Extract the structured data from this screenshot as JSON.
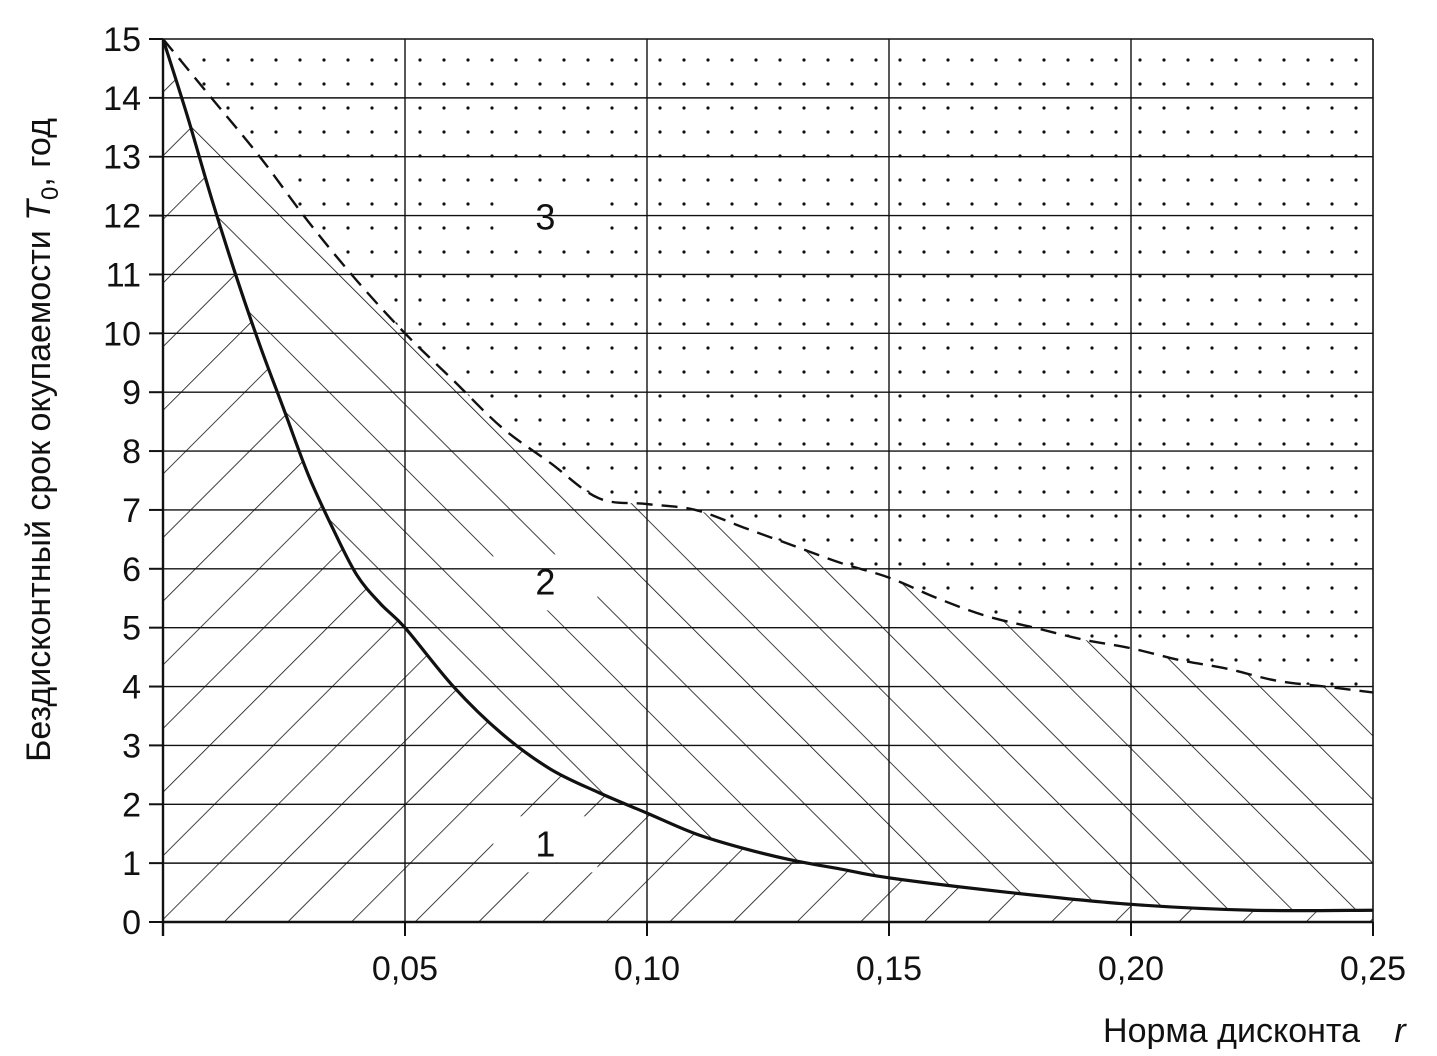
{
  "chart_data": {
    "type": "line",
    "xlabel": "Норма дисконта",
    "xlabel_var": "r",
    "ylabel": "Бездисконтный срок окупаемости",
    "ylabel_var": "T",
    "ylabel_sub": "0",
    "ylabel_unit": ", год",
    "xlim": [
      0,
      0.25
    ],
    "ylim": [
      0,
      15
    ],
    "xticks": [
      {
        "value": 0.05,
        "label": "0,05"
      },
      {
        "value": 0.1,
        "label": "0,10"
      },
      {
        "value": 0.15,
        "label": "0,15"
      },
      {
        "value": 0.2,
        "label": "0,20"
      },
      {
        "value": 0.25,
        "label": "0,25"
      }
    ],
    "yticks": [
      {
        "value": 0,
        "label": "0"
      },
      {
        "value": 1,
        "label": "1"
      },
      {
        "value": 2,
        "label": "2"
      },
      {
        "value": 3,
        "label": "3"
      },
      {
        "value": 4,
        "label": "4"
      },
      {
        "value": 5,
        "label": "5"
      },
      {
        "value": 6,
        "label": "6"
      },
      {
        "value": 7,
        "label": "7"
      },
      {
        "value": 8,
        "label": "8"
      },
      {
        "value": 9,
        "label": "9"
      },
      {
        "value": 10,
        "label": "10"
      },
      {
        "value": 11,
        "label": "11"
      },
      {
        "value": 12,
        "label": "12"
      },
      {
        "value": 13,
        "label": "13"
      },
      {
        "value": 14,
        "label": "14"
      },
      {
        "value": 15,
        "label": "15"
      }
    ],
    "grid": true,
    "series": [
      {
        "style": "solid",
        "x": [
          0,
          0.005,
          0.01,
          0.015,
          0.02,
          0.025,
          0.03,
          0.035,
          0.04,
          0.045,
          0.05,
          0.06,
          0.07,
          0.08,
          0.09,
          0.1,
          0.11,
          0.12,
          0.13,
          0.14,
          0.15,
          0.175,
          0.2,
          0.225,
          0.25
        ],
        "y": [
          15.0,
          13.7,
          12.3,
          11.0,
          9.8,
          8.7,
          7.6,
          6.7,
          5.9,
          5.4,
          5.0,
          4.0,
          3.2,
          2.6,
          2.2,
          1.85,
          1.5,
          1.25,
          1.05,
          0.9,
          0.75,
          0.5,
          0.3,
          0.2,
          0.2
        ]
      },
      {
        "style": "dashed",
        "x": [
          0,
          0.01,
          0.02,
          0.03,
          0.04,
          0.05,
          0.06,
          0.07,
          0.08,
          0.09,
          0.1,
          0.11,
          0.12,
          0.13,
          0.14,
          0.15,
          0.16,
          0.17,
          0.18,
          0.19,
          0.2,
          0.21,
          0.22,
          0.23,
          0.24,
          0.25
        ],
        "y": [
          15.0,
          14.0,
          13.0,
          11.9,
          10.9,
          10.0,
          9.2,
          8.4,
          7.8,
          7.2,
          7.1,
          7.0,
          6.7,
          6.4,
          6.1,
          5.85,
          5.5,
          5.2,
          5.0,
          4.8,
          4.65,
          4.45,
          4.3,
          4.1,
          4.0,
          3.9
        ]
      }
    ],
    "regions": [
      {
        "label": "1",
        "x": 0.079,
        "y": 1.15,
        "hatch": "forward"
      },
      {
        "label": "2",
        "x": 0.079,
        "y": 5.6,
        "hatch": "backward"
      },
      {
        "label": "3",
        "x": 0.079,
        "y": 11.8,
        "hatch": "dots"
      }
    ]
  }
}
